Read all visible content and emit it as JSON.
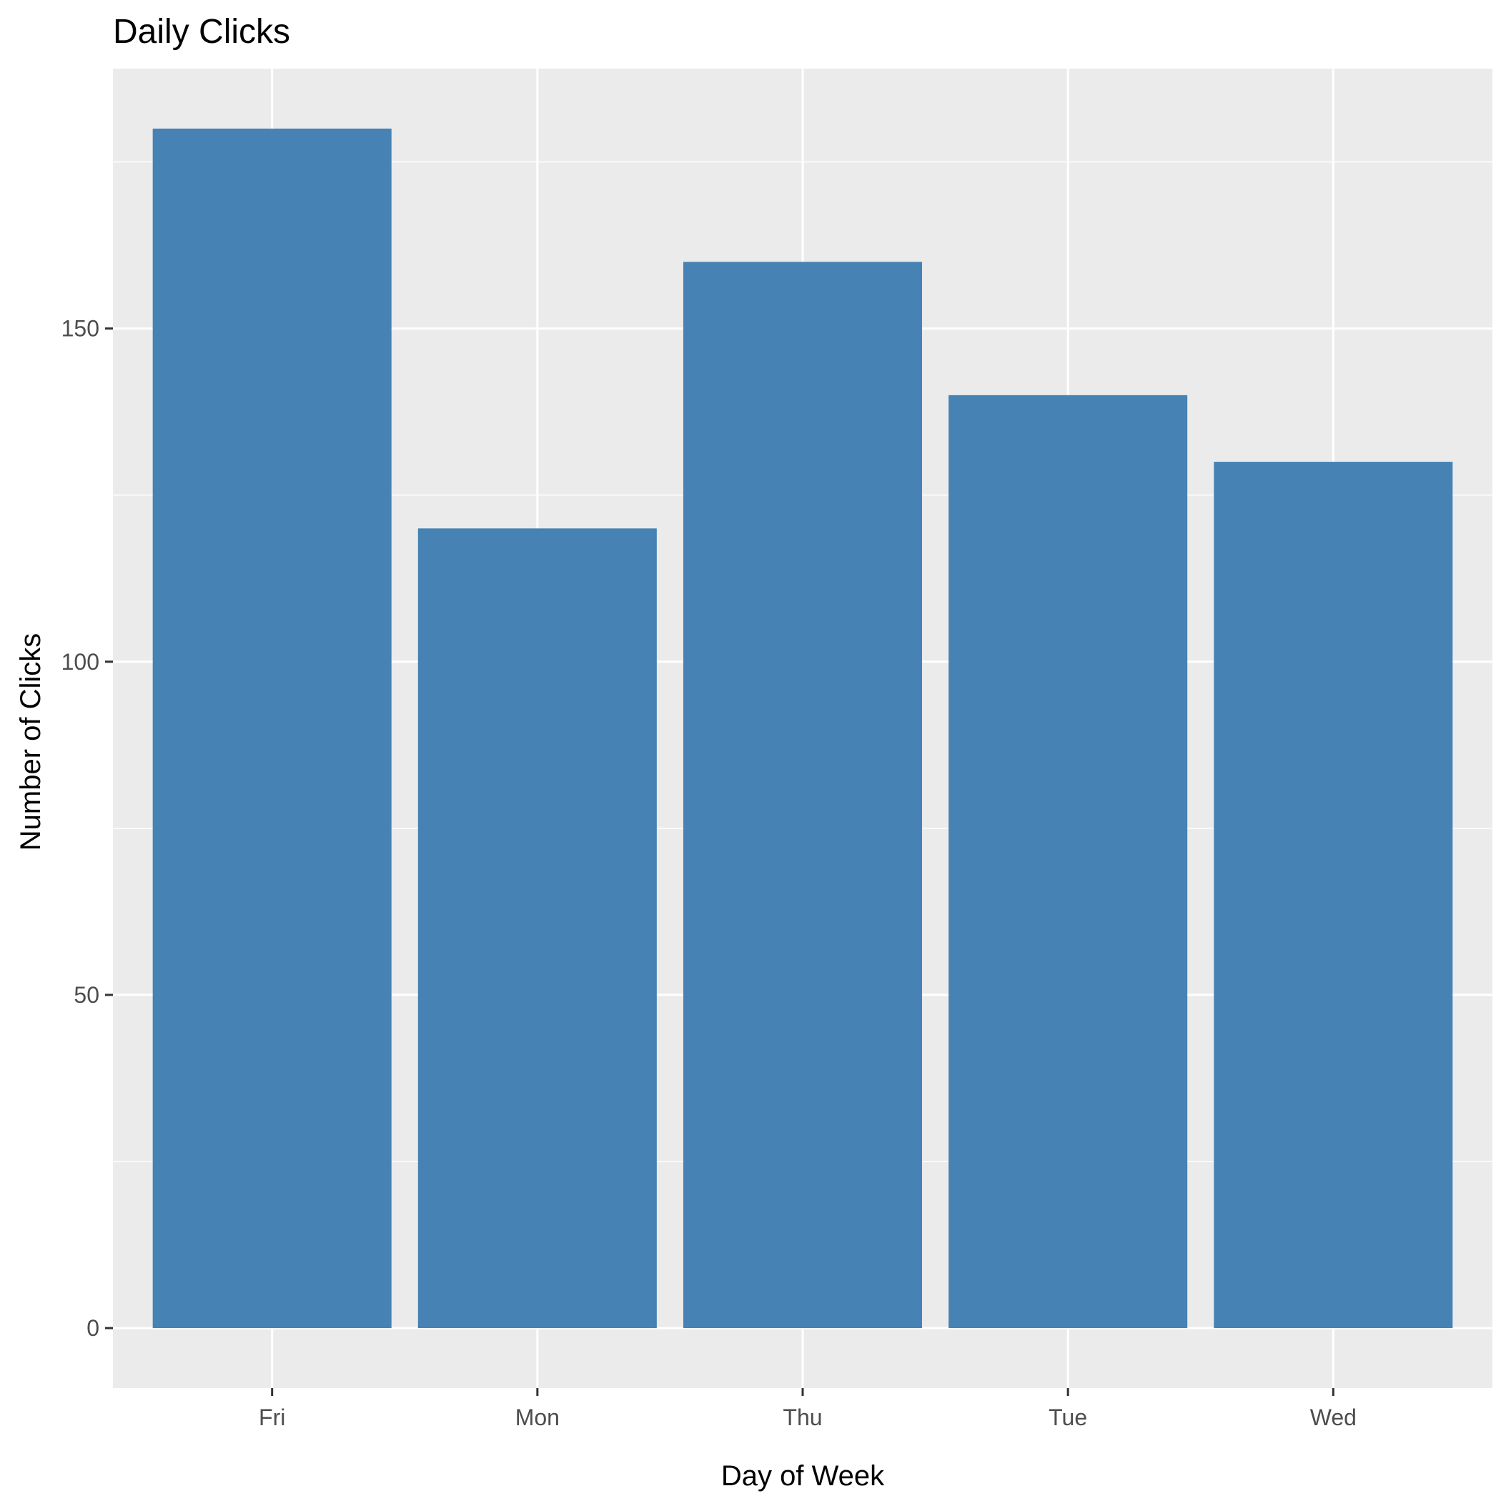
{
  "chart_data": {
    "type": "bar",
    "title": "Daily Clicks",
    "xlabel": "Day of Week",
    "ylabel": "Number of Clicks",
    "categories": [
      "Fri",
      "Mon",
      "Thu",
      "Tue",
      "Wed"
    ],
    "values": [
      180,
      120,
      160,
      140,
      130
    ],
    "ylim": [
      -9,
      189
    ],
    "yticks": [
      0,
      50,
      100,
      150
    ],
    "yminor": [
      25,
      75,
      125,
      175
    ],
    "grid": true,
    "legend": "none",
    "colors": {
      "bar": "#4682b4",
      "panel": "#ebebeb",
      "grid": "#ffffff"
    }
  }
}
